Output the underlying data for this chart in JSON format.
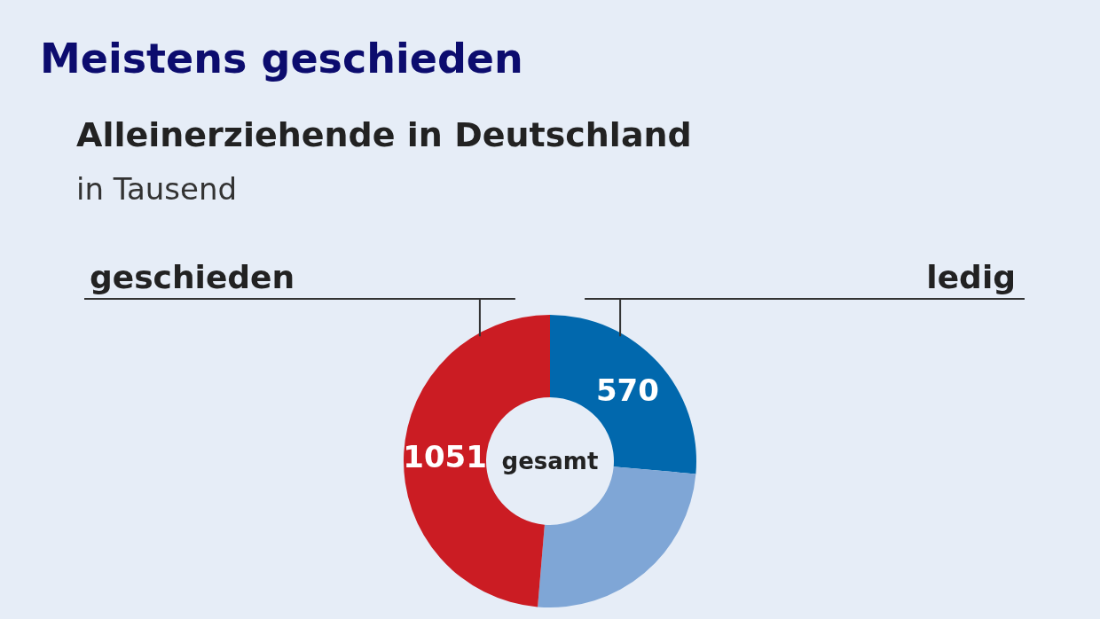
{
  "chart_data": {
    "type": "donut",
    "title": "Meistens geschieden",
    "subtitle": "Alleinerziehende in Deutschland",
    "ylabel": "in Tausend",
    "annotations": [
      "gesamt"
    ],
    "categories": [
      "ledig",
      null,
      "geschieden"
    ],
    "values": [
      570,
      539,
      1051
    ],
    "value_labels": [
      "570",
      null,
      "1051"
    ],
    "colors": [
      "#0168ad",
      "#7fa6d6",
      "#cb1c23"
    ]
  }
}
